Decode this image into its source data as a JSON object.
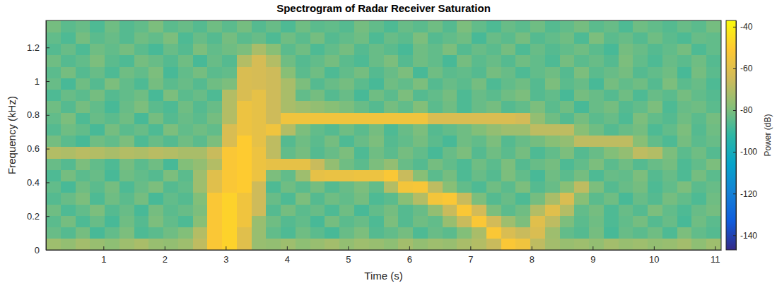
{
  "chart_data": {
    "type": "heatmap",
    "title": "Spectrogram of Radar Receiver Saturation",
    "x_label": "Time (s)",
    "y_label": "Frequency (kHz)",
    "colorbar_label": "Power (dB)",
    "xlim": [
      0.06,
      11.1
    ],
    "ylim": [
      0,
      1.36
    ],
    "xticks": [
      1,
      2,
      3,
      4,
      5,
      6,
      7,
      8,
      9,
      10,
      11
    ],
    "yticks": [
      0,
      0.2,
      0.4,
      0.6,
      0.8,
      1,
      1.2
    ],
    "color_range": [
      -147,
      -37
    ],
    "color_ticks": [
      -140,
      -120,
      -100,
      -80,
      -60,
      -40
    ],
    "x": [
      0.18,
      0.42,
      0.66,
      0.9,
      1.14,
      1.38,
      1.62,
      1.86,
      2.1,
      2.34,
      2.58,
      2.82,
      3.06,
      3.3,
      3.54,
      3.78,
      4.02,
      4.26,
      4.5,
      4.74,
      4.98,
      5.22,
      5.46,
      5.7,
      5.94,
      6.18,
      6.42,
      6.66,
      6.9,
      7.14,
      7.38,
      7.62,
      7.86,
      8.1,
      8.34,
      8.58,
      8.82,
      9.06,
      9.3,
      9.54,
      9.78,
      10.02,
      10.26,
      10.5,
      10.74,
      10.98
    ],
    "y": [
      0.034,
      0.102,
      0.17,
      0.238,
      0.306,
      0.374,
      0.442,
      0.51,
      0.578,
      0.646,
      0.714,
      0.782,
      0.85,
      0.918,
      0.986,
      1.054,
      1.122,
      1.19,
      1.258,
      1.326
    ],
    "z": [
      [
        -74,
        -76,
        -73,
        -75,
        -77,
        -74,
        -72,
        -75,
        -76,
        -74,
        -68,
        -52,
        -48,
        -60,
        -75,
        -76,
        -74,
        -77,
        -75,
        -73,
        -76,
        -74,
        -75,
        -77,
        -73,
        -76,
        -74,
        -75,
        -72,
        -70,
        -66,
        -52,
        -55,
        -68,
        -73,
        -75,
        -74,
        -76,
        -73,
        -75,
        -74,
        -76,
        -75,
        -73,
        -77,
        -74
      ],
      [
        -83,
        -86,
        -81,
        -88,
        -84,
        -80,
        -87,
        -85,
        -82,
        -79,
        -70,
        -52,
        -48,
        -60,
        -75,
        -84,
        -87,
        -82,
        -85,
        -88,
        -83,
        -80,
        -86,
        -84,
        -81,
        -87,
        -83,
        -85,
        -79,
        -72,
        -52,
        -62,
        -66,
        -62,
        -74,
        -84,
        -86,
        -81,
        -88,
        -83,
        -85,
        -82,
        -87,
        -80,
        -84,
        -86
      ],
      [
        -85,
        -81,
        -87,
        -83,
        -88,
        -82,
        -86,
        -80,
        -84,
        -87,
        -78,
        -52,
        -48,
        -55,
        -75,
        -82,
        -86,
        -84,
        -88,
        -81,
        -85,
        -83,
        -87,
        -80,
        -86,
        -82,
        -84,
        -75,
        -66,
        -52,
        -64,
        -74,
        -80,
        -60,
        -68,
        -80,
        -85,
        -82,
        -87,
        -84,
        -81,
        -86,
        -83,
        -88,
        -82,
        -85
      ],
      [
        -82,
        -87,
        -84,
        -80,
        -86,
        -83,
        -88,
        -81,
        -85,
        -83,
        -80,
        -52,
        -48,
        -55,
        -65,
        -86,
        -81,
        -85,
        -83,
        -87,
        -82,
        -88,
        -84,
        -81,
        -86,
        -83,
        -76,
        -66,
        -52,
        -64,
        -80,
        -85,
        -82,
        -70,
        -60,
        -70,
        -84,
        -81,
        -87,
        -83,
        -86,
        -80,
        -84,
        -87,
        -83,
        -81
      ],
      [
        -86,
        -83,
        -80,
        -87,
        -82,
        -85,
        -81,
        -88,
        -84,
        -86,
        -79,
        -52,
        -48,
        -55,
        -65,
        -83,
        -87,
        -80,
        -86,
        -82,
        -84,
        -81,
        -87,
        -85,
        -78,
        -70,
        -54,
        -52,
        -66,
        -80,
        -86,
        -83,
        -87,
        -81,
        -72,
        -62,
        -78,
        -85,
        -82,
        -88,
        -83,
        -86,
        -81,
        -84,
        -87,
        -82
      ],
      [
        -84,
        -88,
        -82,
        -85,
        -81,
        -87,
        -83,
        -80,
        -86,
        -84,
        -74,
        -60,
        -52,
        -50,
        -65,
        -87,
        -82,
        -85,
        -81,
        -86,
        -83,
        -80,
        -84,
        -70,
        -54,
        -53,
        -68,
        -78,
        -84,
        -87,
        -82,
        -85,
        -80,
        -86,
        -83,
        -78,
        -68,
        -80,
        -86,
        -83,
        -81,
        -87,
        -84,
        -80,
        -85,
        -83
      ],
      [
        -87,
        -81,
        -85,
        -83,
        -88,
        -82,
        -84,
        -86,
        -80,
        -85,
        -74,
        -60,
        -52,
        -50,
        -56,
        -80,
        -84,
        -74,
        -58,
        -57,
        -57,
        -56,
        -56,
        -52,
        -66,
        -78,
        -85,
        -81,
        -87,
        -83,
        -86,
        -80,
        -84,
        -88,
        -82,
        -85,
        -81,
        -87,
        -83,
        -84,
        -80,
        -86,
        -83,
        -87,
        -81,
        -85
      ],
      [
        -83,
        -86,
        -80,
        -84,
        -87,
        -81,
        -85,
        -82,
        -88,
        -79,
        -76,
        -70,
        -52,
        -50,
        -56,
        -58,
        -58,
        -58,
        -66,
        -76,
        -82,
        -85,
        -80,
        -76,
        -83,
        -86,
        -81,
        -84,
        -87,
        -82,
        -85,
        -80,
        -86,
        -83,
        -81,
        -87,
        -84,
        -80,
        -85,
        -82,
        -86,
        -83,
        -81,
        -87,
        -84,
        -80
      ],
      [
        -70,
        -71,
        -69,
        -70,
        -72,
        -70,
        -71,
        -69,
        -70,
        -72,
        -72,
        -66,
        -52,
        -50,
        -56,
        -68,
        -84,
        -81,
        -86,
        -83,
        -80,
        -87,
        -82,
        -85,
        -81,
        -84,
        -88,
        -83,
        -80,
        -86,
        -82,
        -85,
        -81,
        -87,
        -84,
        -80,
        -86,
        -83,
        -79,
        -76,
        -68,
        -70,
        -80,
        -85,
        -82,
        -86
      ],
      [
        -81,
        -85,
        -88,
        -82,
        -84,
        -80,
        -87,
        -83,
        -86,
        -82,
        -85,
        -80,
        -62,
        -50,
        -58,
        -68,
        -86,
        -82,
        -85,
        -81,
        -87,
        -83,
        -80,
        -86,
        -84,
        -81,
        -85,
        -88,
        -82,
        -84,
        -80,
        -86,
        -83,
        -81,
        -78,
        -76,
        -68,
        -68,
        -68,
        -68,
        -78,
        -84,
        -87,
        -81,
        -85,
        -83
      ],
      [
        -86,
        -82,
        -84,
        -88,
        -81,
        -85,
        -83,
        -87,
        -80,
        -84,
        -82,
        -84,
        -62,
        -56,
        -58,
        -55,
        -70,
        -80,
        -84,
        -86,
        -82,
        -85,
        -81,
        -87,
        -83,
        -80,
        -86,
        -84,
        -82,
        -79,
        -76,
        -74,
        -74,
        -68,
        -68,
        -68,
        -78,
        -82,
        -86,
        -83,
        -81,
        -87,
        -84,
        -80,
        -86,
        -82
      ],
      [
        -84,
        -80,
        -87,
        -83,
        -85,
        -82,
        -88,
        -81,
        -86,
        -83,
        -85,
        -81,
        -70,
        -56,
        -58,
        -65,
        -55,
        -55,
        -55,
        -55,
        -55,
        -55,
        -55,
        -55,
        -55,
        -55,
        -62,
        -62,
        -62,
        -62,
        -62,
        -62,
        -64,
        -76,
        -82,
        -86,
        -81,
        -85,
        -83,
        -87,
        -80,
        -84,
        -86,
        -82,
        -85,
        -81
      ],
      [
        -82,
        -86,
        -81,
        -84,
        -88,
        -83,
        -80,
        -85,
        -87,
        -82,
        -86,
        -83,
        -70,
        -56,
        -58,
        -65,
        -72,
        -74,
        -76,
        -78,
        -80,
        -83,
        -86,
        -81,
        -84,
        -79,
        -85,
        -82,
        -87,
        -83,
        -81,
        -86,
        -84,
        -80,
        -85,
        -82,
        -88,
        -83,
        -81,
        -86,
        -84,
        -80,
        -87,
        -83,
        -82,
        -85
      ],
      [
        -87,
        -83,
        -85,
        -81,
        -86,
        -84,
        -82,
        -88,
        -80,
        -85,
        -83,
        -87,
        -70,
        -62,
        -58,
        -65,
        -72,
        -84,
        -81,
        -86,
        -83,
        -88,
        -82,
        -85,
        -80,
        -86,
        -84,
        -81,
        -87,
        -83,
        -85,
        -82,
        -80,
        -86,
        -84,
        -88,
        -81,
        -83,
        -86,
        -82,
        -87,
        -83,
        -85,
        -81,
        -84,
        -86
      ],
      [
        -83,
        -88,
        -82,
        -86,
        -80,
        -84,
        -87,
        -81,
        -85,
        -83,
        -86,
        -82,
        -80,
        -62,
        -63,
        -65,
        -72,
        -80,
        -86,
        -83,
        -81,
        -85,
        -88,
        -82,
        -84,
        -80,
        -86,
        -83,
        -85,
        -81,
        -87,
        -84,
        -82,
        -86,
        -80,
        -85,
        -83,
        -88,
        -81,
        -84,
        -82,
        -86,
        -80,
        -85,
        -83,
        -87
      ],
      [
        -85,
        -81,
        -86,
        -83,
        -87,
        -82,
        -84,
        -80,
        -88,
        -84,
        -81,
        -85,
        -84,
        -62,
        -63,
        -65,
        -78,
        -85,
        -82,
        -87,
        -84,
        -81,
        -86,
        -83,
        -80,
        -88,
        -82,
        -85,
        -84,
        -86,
        -81,
        -83,
        -87,
        -84,
        -82,
        -86,
        -80,
        -85,
        -83,
        -81,
        -86,
        -84,
        -82,
        -88,
        -81,
        -85
      ],
      [
        -82,
        -86,
        -84,
        -80,
        -85,
        -87,
        -81,
        -83,
        -86,
        -82,
        -88,
        -83,
        -86,
        -70,
        -63,
        -70,
        -82,
        -86,
        -84,
        -81,
        -85,
        -87,
        -83,
        -80,
        -86,
        -82,
        -84,
        -88,
        -81,
        -85,
        -83,
        -86,
        -82,
        -84,
        -87,
        -81,
        -85,
        -83,
        -86,
        -80,
        -84,
        -87,
        -83,
        -85,
        -82,
        -86
      ],
      [
        -86,
        -83,
        -87,
        -82,
        -84,
        -81,
        -85,
        -88,
        -83,
        -86,
        -80,
        -84,
        -82,
        -80,
        -72,
        -78,
        -85,
        -82,
        -87,
        -84,
        -81,
        -86,
        -83,
        -85,
        -88,
        -82,
        -84,
        -80,
        -86,
        -83,
        -85,
        -81,
        -87,
        -83,
        -86,
        -84,
        -82,
        -85,
        -88,
        -81,
        -83,
        -86,
        -84,
        -81,
        -87,
        -84
      ],
      [
        -84,
        -87,
        -81,
        -85,
        -83,
        -86,
        -82,
        -84,
        -80,
        -87,
        -83,
        -86,
        -81,
        -85,
        -83,
        -87,
        -82,
        -85,
        -81,
        -86,
        -84,
        -82,
        -87,
        -83,
        -85,
        -80,
        -86,
        -84,
        -82,
        -88,
        -83,
        -85,
        -81,
        -86,
        -84,
        -82,
        -87,
        -80,
        -85,
        -83,
        -86,
        -82,
        -85,
        -87,
        -83,
        -84
      ],
      [
        -81,
        -85,
        -83,
        -87,
        -82,
        -86,
        -84,
        -80,
        -85,
        -83,
        -86,
        -82,
        -85,
        -81,
        -86,
        -83,
        -87,
        -82,
        -85,
        -84,
        -86,
        -81,
        -84,
        -87,
        -83,
        -85,
        -82,
        -86,
        -80,
        -84,
        -87,
        -83,
        -85,
        -82,
        -86,
        -84,
        -81,
        -85,
        -83,
        -87,
        -82,
        -84,
        -86,
        -83,
        -85,
        -81
      ]
    ]
  }
}
